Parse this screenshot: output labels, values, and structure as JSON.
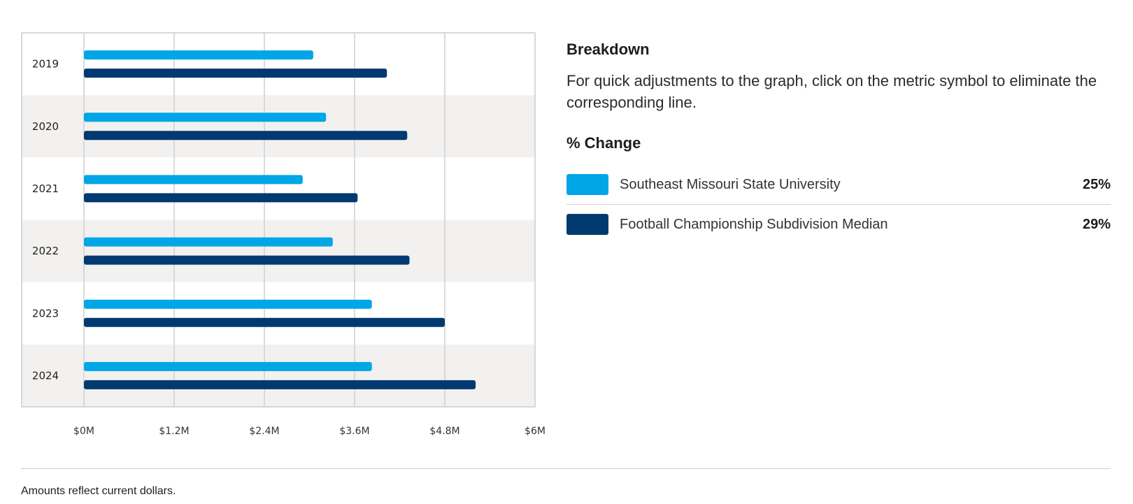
{
  "chart_data": {
    "type": "bar",
    "orientation": "horizontal",
    "categories": [
      "2019",
      "2020",
      "2021",
      "2022",
      "2023",
      "2024"
    ],
    "series": [
      {
        "name": "Southeast Missouri State University",
        "color": "#00a6e6",
        "values": [
          3.05,
          3.22,
          2.91,
          3.31,
          3.83,
          3.83
        ]
      },
      {
        "name": "Football Championship Subdivision Median",
        "color": "#003a70",
        "values": [
          4.03,
          4.3,
          3.64,
          4.33,
          4.8,
          5.21
        ]
      }
    ],
    "xlim": [
      0,
      6
    ],
    "x_ticks": [
      0,
      1.2,
      2.4,
      3.6,
      4.8,
      6
    ],
    "x_tick_labels": [
      "$0M",
      "$1.2M",
      "$2.4M",
      "$3.6M",
      "$4.8M",
      "$6M"
    ],
    "grid": "vertical",
    "title": "",
    "xlabel": "",
    "ylabel": ""
  },
  "breakdown": {
    "title": "Breakdown",
    "description": "For quick adjustments to the graph, click on the metric symbol to eliminate the corresponding line."
  },
  "change": {
    "title": "% Change",
    "items": [
      {
        "name": "Southeast Missouri State University",
        "pct": "25%",
        "color": "#00a6e6"
      },
      {
        "name": "Football Championship Subdivision Median",
        "pct": "29%",
        "color": "#003a70"
      }
    ]
  },
  "footnote": "Amounts reflect current dollars."
}
